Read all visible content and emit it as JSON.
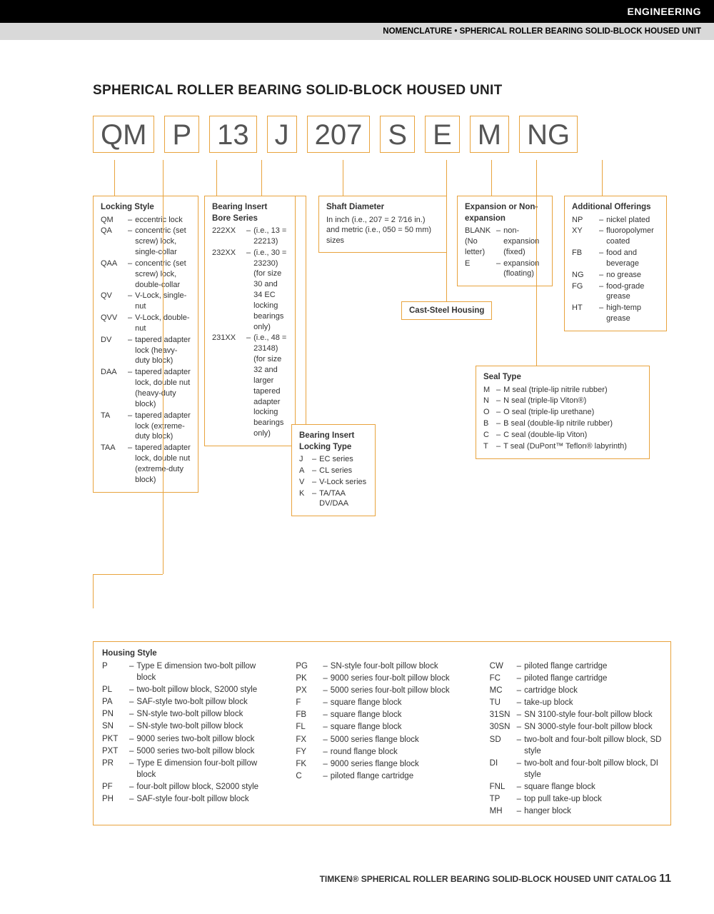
{
  "header": {
    "category": "ENGINEERING",
    "breadcrumb": "NOMENCLATURE • SPHERICAL ROLLER BEARING SOLID-BLOCK HOUSED UNIT"
  },
  "title": "SPHERICAL ROLLER BEARING SOLID-BLOCK HOUSED UNIT",
  "codes": [
    "QM",
    "P",
    "13",
    "J",
    "207",
    "S",
    "E",
    "M",
    "NG"
  ],
  "lockingStyle": {
    "title": "Locking Style",
    "items": [
      {
        "c": "QM",
        "t": "eccentric lock"
      },
      {
        "c": "QA",
        "t": "concentric (set screw) lock, single-collar"
      },
      {
        "c": "QAA",
        "t": "concentric (set screw) lock, double-collar"
      },
      {
        "c": "QV",
        "t": "V-Lock, single-nut"
      },
      {
        "c": "QVV",
        "t": "V-Lock, double-nut"
      },
      {
        "c": "DV",
        "t": "tapered adapter lock (heavy-duty block)"
      },
      {
        "c": "DAA",
        "t": "tapered adapter lock, double nut (heavy-duty block)"
      },
      {
        "c": "TA",
        "t": "tapered adapter lock (extreme-duty block)"
      },
      {
        "c": "TAA",
        "t": "tapered adapter lock, double nut (extreme-duty block)"
      }
    ]
  },
  "boreSeries": {
    "title": "Bearing Insert Bore Series",
    "items": [
      {
        "c": "222XX",
        "t": "(i.e., 13 = 22213)"
      },
      {
        "c": "232XX",
        "t": "(i.e., 30 = 23230) (for size 30 and 34 EC locking bearings only)"
      },
      {
        "c": "231XX",
        "t": "(i.e., 48 = 23148) (for size 32 and larger tapered adapter locking bearings only)"
      }
    ]
  },
  "lockingType": {
    "title": "Bearing Insert Locking Type",
    "items": [
      {
        "c": "J",
        "t": "EC series"
      },
      {
        "c": "A",
        "t": "CL series"
      },
      {
        "c": "V",
        "t": "V-Lock series"
      },
      {
        "c": "K",
        "t": "TA/TAA DV/DAA"
      }
    ]
  },
  "shaftDiameter": {
    "title": "Shaft Diameter",
    "text": "In inch (i.e., 207 = 2 7⁄16 in.) and metric (i.e., 050 = 50 mm) sizes"
  },
  "castSteel": "Cast-Steel Housing",
  "expansion": {
    "title": "Expansion or Non-expansion",
    "items": [
      {
        "c": "BLANK (No letter)",
        "t": "non-expansion (fixed)"
      },
      {
        "c": "E",
        "t": "expansion (floating)"
      }
    ]
  },
  "sealType": {
    "title": "Seal Type",
    "items": [
      {
        "c": "M",
        "t": "M seal (triple-lip nitrile rubber)"
      },
      {
        "c": "N",
        "t": "N seal (triple-lip Viton®)"
      },
      {
        "c": "O",
        "t": "O seal (triple-lip urethane)"
      },
      {
        "c": "B",
        "t": "B seal (double-lip nitrile rubber)"
      },
      {
        "c": "C",
        "t": "C seal (double-lip Viton)"
      },
      {
        "c": "T",
        "t": "T seal (DuPont™ Teflon® labyrinth)"
      }
    ]
  },
  "additional": {
    "title": "Additional Offerings",
    "items": [
      {
        "c": "NP",
        "t": "nickel plated"
      },
      {
        "c": "XY",
        "t": "fluoropolymer coated"
      },
      {
        "c": "FB",
        "t": "food and beverage"
      },
      {
        "c": "NG",
        "t": "no grease"
      },
      {
        "c": "FG",
        "t": "food-grade grease"
      },
      {
        "c": "HT",
        "t": "high-temp grease"
      }
    ]
  },
  "housing": {
    "title": "Housing Style",
    "col1": [
      {
        "c": "P",
        "t": "Type E dimension two-bolt pillow block"
      },
      {
        "c": "PL",
        "t": "two-bolt pillow block, S2000 style"
      },
      {
        "c": "PA",
        "t": "SAF-style two-bolt pillow block"
      },
      {
        "c": "PN",
        "t": "SN-style two-bolt pillow block"
      },
      {
        "c": "SN",
        "t": "SN-style two-bolt pillow block"
      },
      {
        "c": "PKT",
        "t": "9000 series two-bolt pillow block"
      },
      {
        "c": "PXT",
        "t": "5000 series two-bolt pillow block"
      },
      {
        "c": "PR",
        "t": "Type E dimension four-bolt pillow block"
      },
      {
        "c": "PF",
        "t": "four-bolt pillow block, S2000 style"
      },
      {
        "c": "PH",
        "t": "SAF-style four-bolt pillow block"
      }
    ],
    "col2": [
      {
        "c": "PG",
        "t": "SN-style four-bolt pillow block"
      },
      {
        "c": "PK",
        "t": "9000 series four-bolt pillow block"
      },
      {
        "c": "PX",
        "t": "5000 series four-bolt pillow block"
      },
      {
        "c": "F",
        "t": "square flange block"
      },
      {
        "c": "FB",
        "t": "square flange block"
      },
      {
        "c": "FL",
        "t": "square flange block"
      },
      {
        "c": "FX",
        "t": "5000 series flange block"
      },
      {
        "c": "FY",
        "t": "round flange block"
      },
      {
        "c": "FK",
        "t": "9000 series flange block"
      },
      {
        "c": "C",
        "t": "piloted flange cartridge"
      }
    ],
    "col3": [
      {
        "c": "CW",
        "t": "piloted flange cartridge"
      },
      {
        "c": "FC",
        "t": "piloted flange cartridge"
      },
      {
        "c": "MC",
        "t": "cartridge block"
      },
      {
        "c": "TU",
        "t": "take-up block"
      },
      {
        "c": "31SN",
        "t": "SN 3100-style four-bolt pillow block"
      },
      {
        "c": "30SN",
        "t": "SN 3000-style four-bolt pillow block"
      },
      {
        "c": "SD",
        "t": "two-bolt and four-bolt pillow block, SD style"
      },
      {
        "c": "DI",
        "t": "two-bolt and four-bolt pillow block, DI style"
      },
      {
        "c": "FNL",
        "t": "square flange block"
      },
      {
        "c": "TP",
        "t": "top pull take-up block"
      },
      {
        "c": "MH",
        "t": "hanger block"
      }
    ]
  },
  "footer": {
    "text": "TIMKEN® SPHERICAL ROLLER BEARING SOLID-BLOCK HOUSED UNIT CATALOG",
    "page": "11"
  },
  "colors": {
    "accent": "#e8a33d",
    "black": "#000000",
    "gray": "#d9d9d9"
  }
}
